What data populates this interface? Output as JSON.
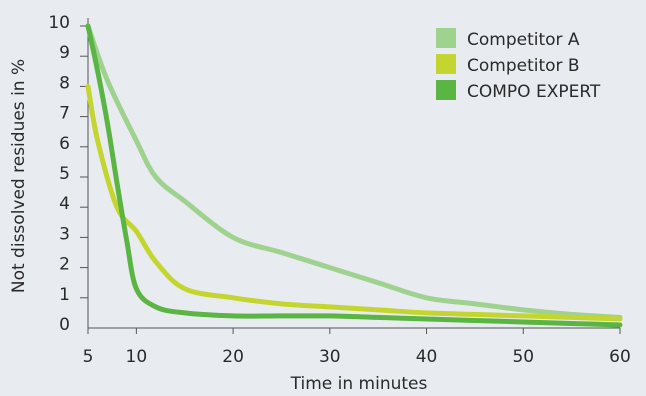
{
  "chart_data": {
    "type": "line",
    "title": "",
    "xlabel": "Time in minutes",
    "ylabel": "Not dissolved residues in %",
    "xlim": [
      5,
      60
    ],
    "ylim": [
      0,
      10
    ],
    "x_ticks": [
      5,
      10,
      20,
      30,
      40,
      50,
      60
    ],
    "y_ticks": [
      0,
      1,
      2,
      3,
      4,
      5,
      6,
      7,
      8,
      9,
      10
    ],
    "grid": false,
    "legend_position": "top-right",
    "series": [
      {
        "name": "Competitor A",
        "color": "#9fd18f",
        "x": [
          5,
          7,
          10,
          12,
          15,
          20,
          25,
          30,
          35,
          40,
          45,
          50,
          55,
          60
        ],
        "y": [
          10,
          8.2,
          6.2,
          5.0,
          4.2,
          3.0,
          2.5,
          2.0,
          1.5,
          1.0,
          0.8,
          0.6,
          0.45,
          0.35
        ]
      },
      {
        "name": "Competitor B",
        "color": "#c5d530",
        "x": [
          5,
          6,
          8,
          10,
          12,
          15,
          20,
          25,
          30,
          35,
          40,
          45,
          50,
          55,
          60
        ],
        "y": [
          8.0,
          6.2,
          4.0,
          3.2,
          2.2,
          1.3,
          1.0,
          0.8,
          0.7,
          0.6,
          0.5,
          0.45,
          0.4,
          0.35,
          0.3
        ]
      },
      {
        "name": "COMPO EXPERT",
        "color": "#5ab543",
        "x": [
          5,
          6,
          7,
          8,
          9,
          10,
          12,
          15,
          20,
          25,
          30,
          35,
          40,
          45,
          50,
          55,
          60
        ],
        "y": [
          10,
          8.5,
          6.8,
          4.8,
          2.9,
          1.3,
          0.7,
          0.5,
          0.4,
          0.4,
          0.4,
          0.35,
          0.3,
          0.25,
          0.2,
          0.15,
          0.1
        ]
      }
    ]
  }
}
